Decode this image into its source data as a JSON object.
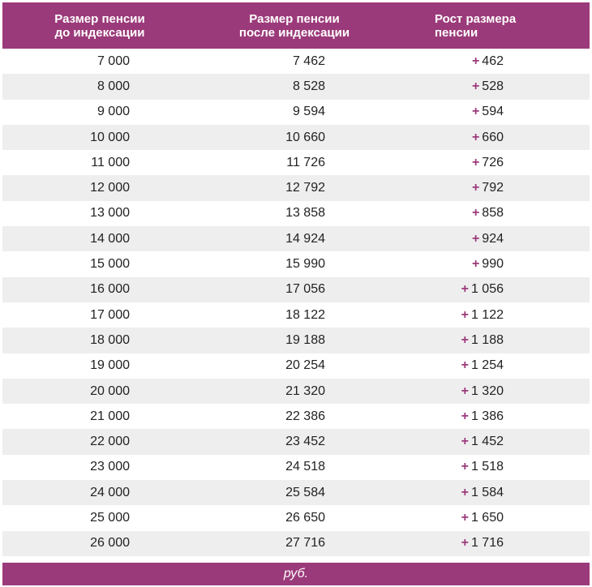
{
  "header": {
    "col1": "Размер пенсии\nдо индексации",
    "col1_line1": "Размер пенсии",
    "col1_line2": "до индексации",
    "col2_line1": "Размер пенсии",
    "col2_line2": "после индексации",
    "col3_line1": "Рост размера",
    "col3_line2": "пенсии"
  },
  "plus_sign": "+",
  "rows": [
    {
      "before": "7 000",
      "after": "7 462",
      "growth": "462"
    },
    {
      "before": "8 000",
      "after": "8 528",
      "growth": "528"
    },
    {
      "before": "9 000",
      "after": "9 594",
      "growth": "594"
    },
    {
      "before": "10 000",
      "after": "10 660",
      "growth": "660"
    },
    {
      "before": "11 000",
      "after": "11 726",
      "growth": "726"
    },
    {
      "before": "12 000",
      "after": "12 792",
      "growth": "792"
    },
    {
      "before": "13 000",
      "after": "13 858",
      "growth": "858"
    },
    {
      "before": "14 000",
      "after": "14 924",
      "growth": "924"
    },
    {
      "before": "15 000",
      "after": "15 990",
      "growth": "990"
    },
    {
      "before": "16 000",
      "after": "17 056",
      "growth": "1 056"
    },
    {
      "before": "17 000",
      "after": "18 122",
      "growth": "1 122"
    },
    {
      "before": "18 000",
      "after": "19 188",
      "growth": "1 188"
    },
    {
      "before": "19 000",
      "after": "20 254",
      "growth": "1 254"
    },
    {
      "before": "20 000",
      "after": "21 320",
      "growth": "1 320"
    },
    {
      "before": "21 000",
      "after": "22 386",
      "growth": "1 386"
    },
    {
      "before": "22 000",
      "after": "23 452",
      "growth": "1 452"
    },
    {
      "before": "23 000",
      "after": "24 518",
      "growth": "1 518"
    },
    {
      "before": "24 000",
      "after": "25 584",
      "growth": "1 584"
    },
    {
      "before": "25 000",
      "after": "26 650",
      "growth": "1 650"
    },
    {
      "before": "26 000",
      "after": "27 716",
      "growth": "1 716"
    }
  ],
  "footer": {
    "unit": "руб."
  },
  "colors": {
    "accent": "#9b3a7a",
    "row_alt": "#eeeeee"
  }
}
